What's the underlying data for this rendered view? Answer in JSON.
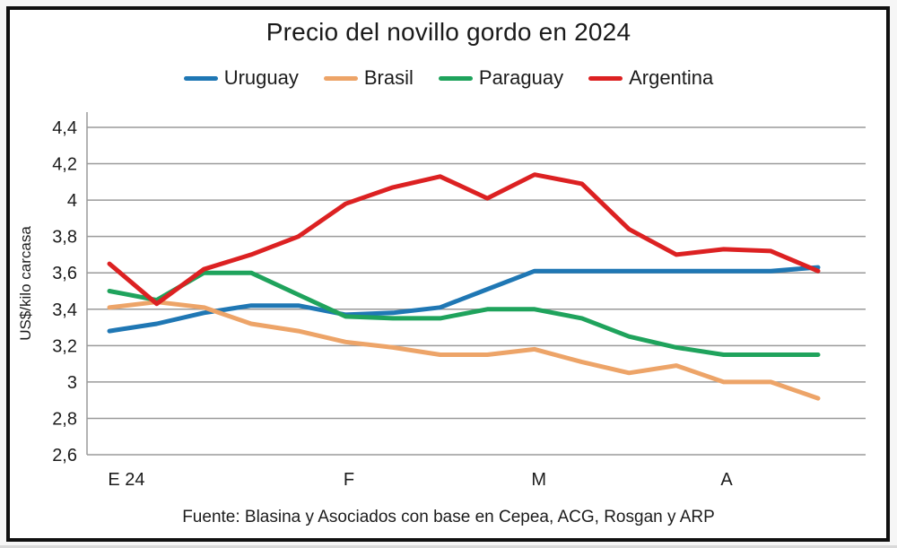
{
  "title": "Precio del novillo gordo en 2024",
  "footer": "Fuente: Blasina y Asociados con base en Cepea, ACG, Rosgan y ARP",
  "colors": {
    "uruguay": "#1f77b4",
    "brasil": "#eda468",
    "paraguay": "#1fa35c",
    "argentina": "#dc2122",
    "grid": "#9a9a9a",
    "text": "#1c1c1c"
  },
  "chart_data": {
    "type": "line",
    "title": "Precio del novillo gordo en 2024",
    "ylabel": "US$/kilo carcasa",
    "xlabel": "",
    "ylim": [
      2.6,
      4.4
    ],
    "ytick_step": 0.2,
    "ytick_labels": [
      "4,4",
      "4,2",
      "4",
      "3,8",
      "3,6",
      "3,4",
      "3,2",
      "3",
      "2,8",
      "2,6"
    ],
    "x_ticks": [
      {
        "label": "E 24",
        "pos": 0.024
      },
      {
        "label": "F",
        "pos": 0.338
      },
      {
        "label": "M",
        "pos": 0.606
      },
      {
        "label": "A",
        "pos": 0.871
      }
    ],
    "grid": true,
    "legend_position": "top",
    "series": [
      {
        "name": "Uruguay",
        "color": "#1f77b4",
        "values": [
          3.28,
          3.32,
          3.38,
          3.42,
          3.42,
          3.37,
          3.38,
          3.41,
          3.51,
          3.61,
          3.61,
          3.61,
          3.61,
          3.61,
          3.61,
          3.63
        ]
      },
      {
        "name": "Brasil",
        "color": "#eda468",
        "values": [
          3.41,
          3.44,
          3.41,
          3.32,
          3.28,
          3.22,
          3.19,
          3.15,
          3.15,
          3.18,
          3.11,
          3.05,
          3.09,
          3.0,
          3.0,
          2.91
        ]
      },
      {
        "name": "Paraguay",
        "color": "#1fa35c",
        "values": [
          3.5,
          3.45,
          3.6,
          3.6,
          3.48,
          3.36,
          3.35,
          3.35,
          3.4,
          3.4,
          3.35,
          3.25,
          3.19,
          3.15,
          3.15,
          3.15
        ]
      },
      {
        "name": "Argentina",
        "color": "#dc2122",
        "values": [
          3.65,
          3.43,
          3.62,
          3.7,
          3.8,
          3.98,
          4.07,
          4.13,
          4.01,
          4.14,
          4.09,
          3.84,
          3.7,
          3.73,
          3.72,
          3.61
        ]
      }
    ]
  }
}
